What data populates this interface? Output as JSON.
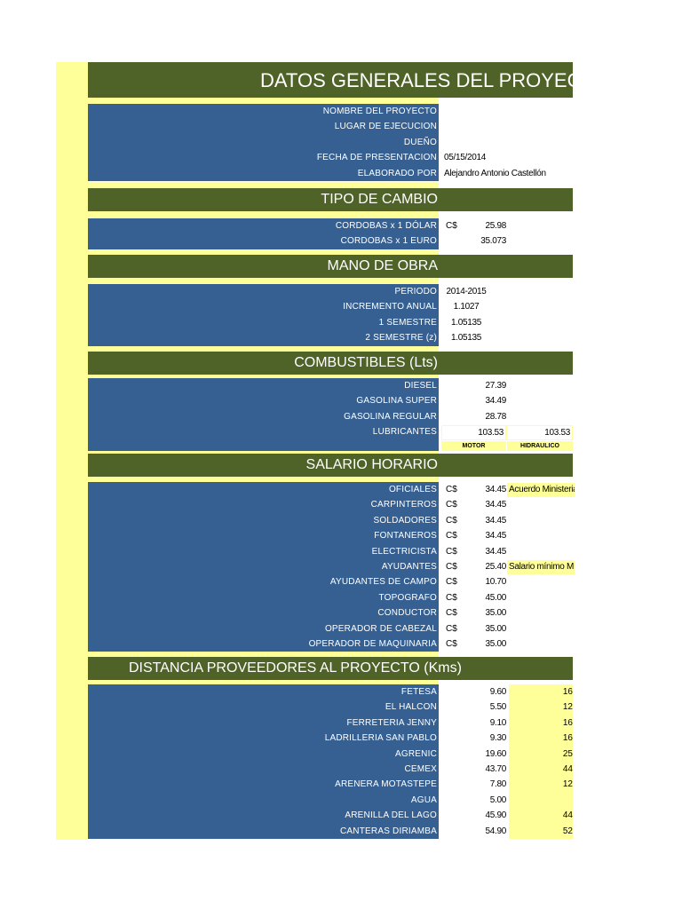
{
  "colors": {
    "header_bg": "#4f6228",
    "label_bg": "#366092",
    "highlight": "#ffff99"
  },
  "title": "DATOS GENERALES DEL PROYECTO",
  "general": {
    "rows": [
      {
        "label": "NOMBRE DEL PROYECTO",
        "value": ""
      },
      {
        "label": "LUGAR DE EJECUCION",
        "value": ""
      },
      {
        "label": "DUEÑO",
        "value": ""
      },
      {
        "label": "FECHA DE PRESENTACION",
        "value": "05/15/2014"
      },
      {
        "label": "ELABORADO POR",
        "value": "Alejandro Antonio Castellón"
      }
    ]
  },
  "tipo_cambio": {
    "header": "TIPO DE CAMBIO",
    "rows": [
      {
        "label": "CORDOBAS x 1 DÓLAR",
        "currency": "C$",
        "value": "25.98"
      },
      {
        "label": "CORDOBAS x 1 EURO",
        "currency": "",
        "value": "35.073"
      }
    ]
  },
  "mano_obra": {
    "header": "MANO DE OBRA",
    "rows": [
      {
        "label": "PERIODO",
        "value": "2014-2015"
      },
      {
        "label": "INCREMENTO ANUAL",
        "value": "1.1027"
      },
      {
        "label": "1 SEMESTRE",
        "value": "1.05135"
      },
      {
        "label": "2 SEMESTRE (z)",
        "value": "1.05135"
      }
    ]
  },
  "combustibles": {
    "header": "COMBUSTIBLES  (Lts)",
    "rows": [
      {
        "label": "DIESEL",
        "value": "27.39"
      },
      {
        "label": "GASOLINA SUPER",
        "value": "34.49"
      },
      {
        "label": "GASOLINA REGULAR",
        "value": "28.78"
      }
    ],
    "lubricantes": {
      "label": "LUBRICANTES",
      "motor": "103.53",
      "hidraulico": "103.53",
      "motor_label": "MOTOR",
      "hidraulico_label": "HIDRAULICO"
    }
  },
  "salario": {
    "header": "SALARIO HORARIO",
    "rows": [
      {
        "label": "OFICIALES",
        "currency": "C$",
        "value": "34.45",
        "note": "Acuerdo Ministerial"
      },
      {
        "label": "CARPINTEROS",
        "currency": "C$",
        "value": "34.45",
        "note": ""
      },
      {
        "label": "SOLDADORES",
        "currency": "C$",
        "value": "34.45",
        "note": ""
      },
      {
        "label": "FONTANEROS",
        "currency": "C$",
        "value": "34.45",
        "note": ""
      },
      {
        "label": "ELECTRICISTA",
        "currency": "C$",
        "value": "34.45",
        "note": ""
      },
      {
        "label": "AYUDANTES",
        "currency": "C$",
        "value": "25.40",
        "note": "Salario mínimo M"
      },
      {
        "label": "AYUDANTES DE CAMPO",
        "currency": "C$",
        "value": "10.70",
        "note": ""
      },
      {
        "label": "TOPOGRAFO",
        "currency": "C$",
        "value": "45.00",
        "note": ""
      },
      {
        "label": "CONDUCTOR",
        "currency": "C$",
        "value": "35.00",
        "note": ""
      },
      {
        "label": "OPERADOR DE CABEZAL",
        "currency": "C$",
        "value": "35.00",
        "note": ""
      },
      {
        "label": "OPERADOR DE MAQUINARIA",
        "currency": "C$",
        "value": "35.00",
        "note": ""
      }
    ]
  },
  "distancia": {
    "header": "DISTANCIA PROVEEDORES AL PROYECTO  (Kms)",
    "rows": [
      {
        "label": "FETESA",
        "value": "9.60",
        "extra": "16"
      },
      {
        "label": "EL HALCON",
        "value": "5.50",
        "extra": "12"
      },
      {
        "label": "FERRETERIA JENNY",
        "value": "9.10",
        "extra": "16"
      },
      {
        "label": "LADRILLERIA SAN PABLO",
        "value": "9.30",
        "extra": "16"
      },
      {
        "label": "AGRENIC",
        "value": "19.60",
        "extra": "25"
      },
      {
        "label": "CEMEX",
        "value": "43.70",
        "extra": "44"
      },
      {
        "label": "ARENERA MOTASTEPE",
        "value": "7.80",
        "extra": "12"
      },
      {
        "label": "AGUA",
        "value": "5.00",
        "extra": ""
      },
      {
        "label": "ARENILLA DEL LAGO",
        "value": "45.90",
        "extra": "44"
      },
      {
        "label": "CANTERAS DIRIAMBA",
        "value": "54.90",
        "extra": "52"
      }
    ]
  }
}
